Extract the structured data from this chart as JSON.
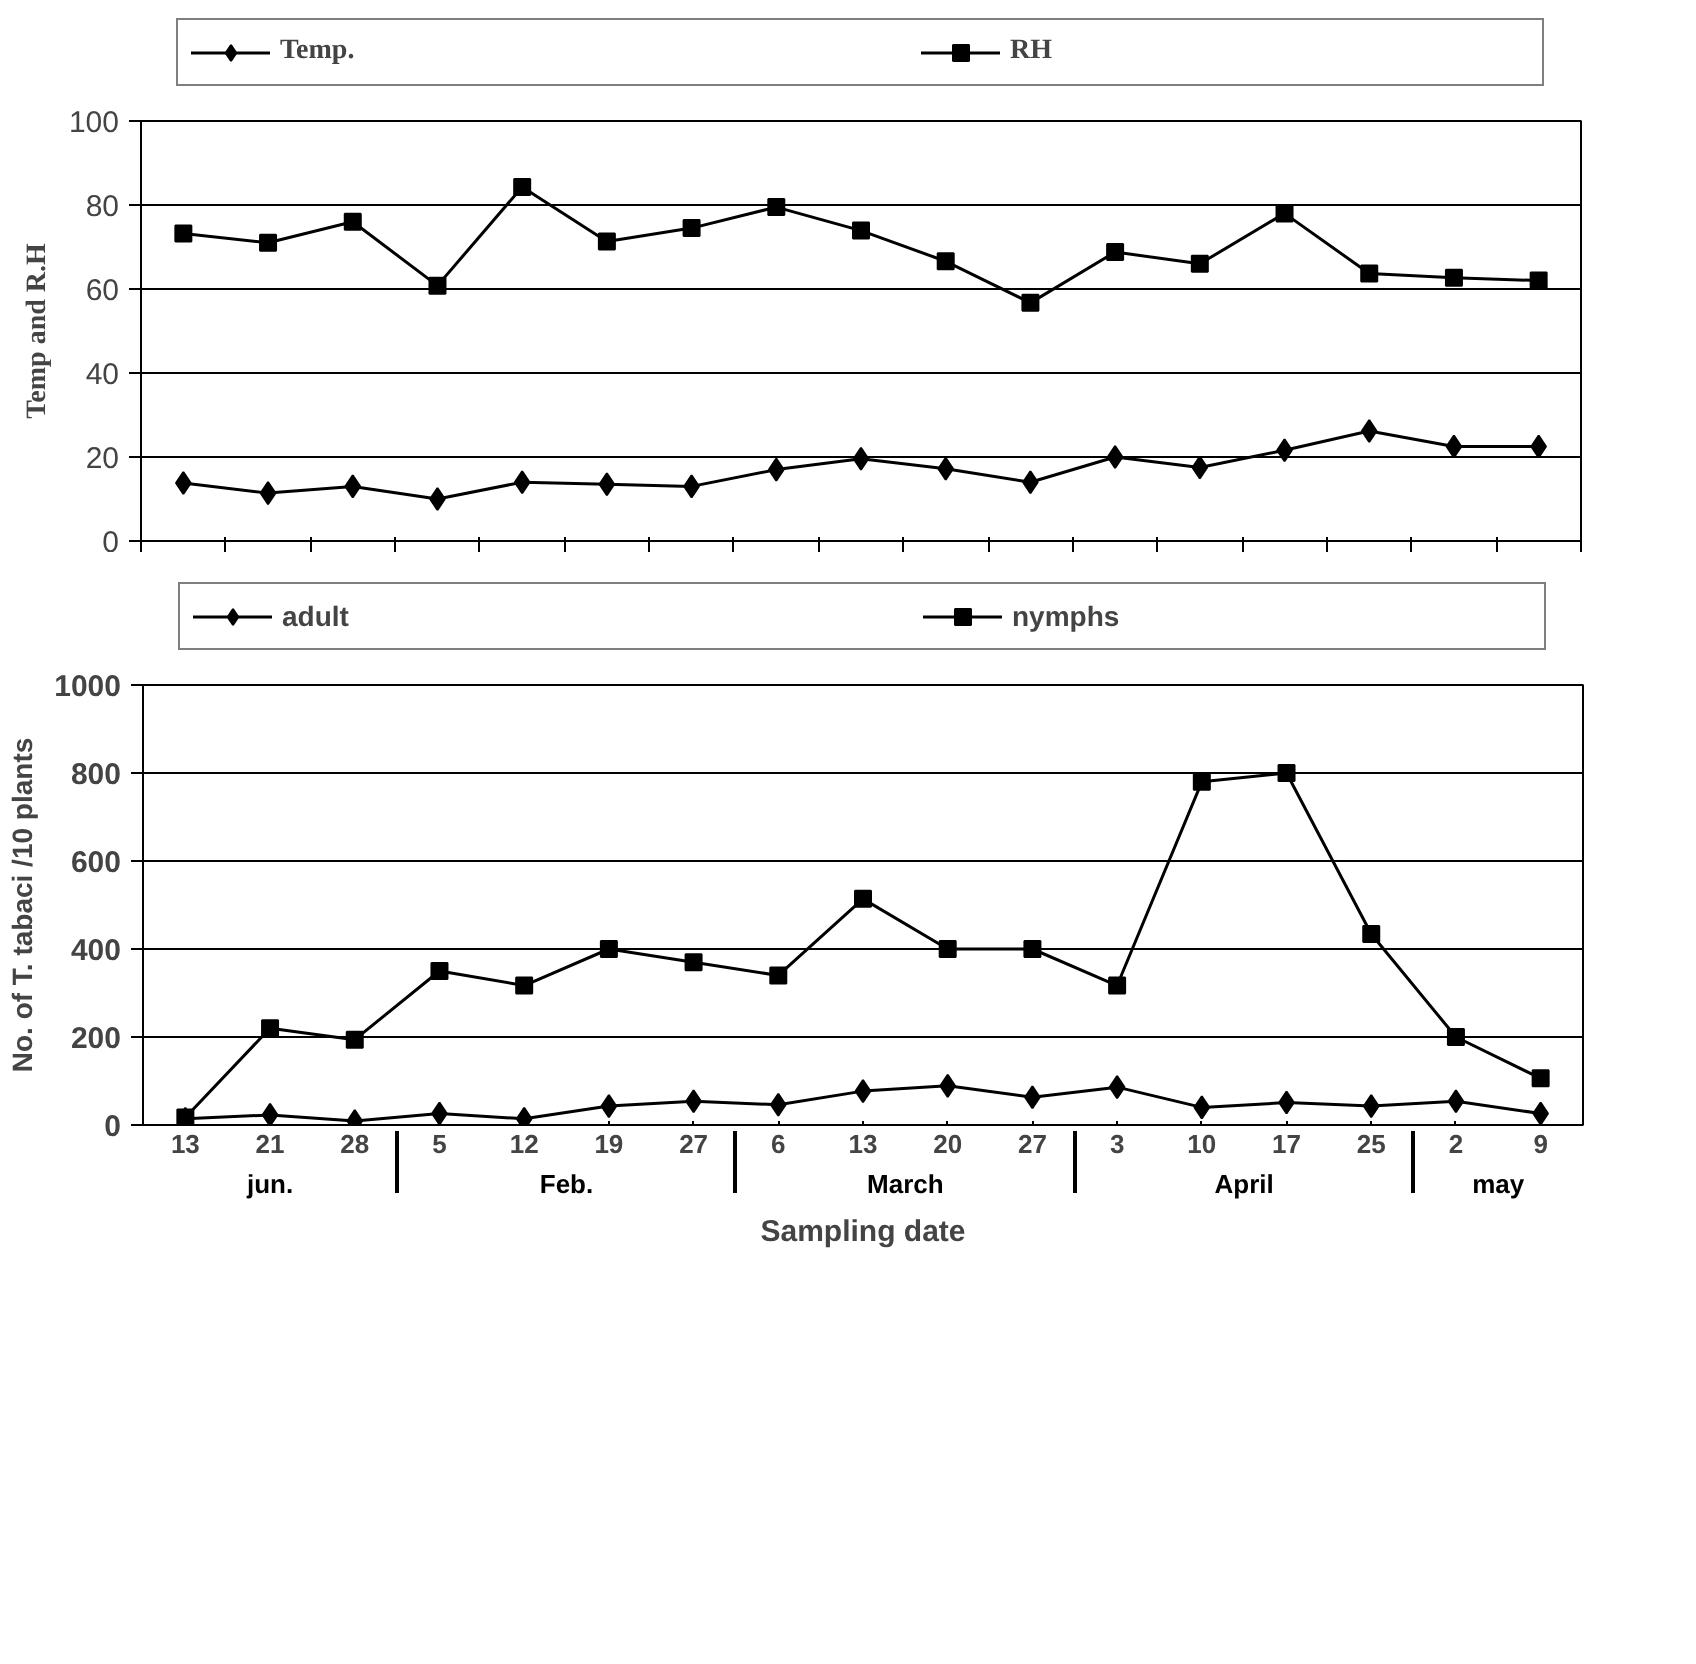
{
  "chart_data": [
    {
      "type": "line",
      "ylabel": "Temp and R.H",
      "categories": [
        null,
        null,
        null,
        null,
        null,
        null,
        null,
        null,
        null,
        null,
        null,
        null,
        null,
        null,
        null,
        null,
        null
      ],
      "series": [
        {
          "name": "Temp.",
          "color": "#000000",
          "marker": "diamond",
          "values": [
            13.8,
            11.4,
            13,
            10,
            14,
            13.5,
            13,
            17,
            19.6,
            17.2,
            14,
            20,
            17.5,
            21.6,
            26.2,
            22.5,
            22.5
          ]
        },
        {
          "name": "RH",
          "color": "#000000",
          "marker": "square",
          "values": [
            73.2,
            71,
            76,
            60.8,
            84.3,
            71.3,
            74.5,
            79.5,
            73.9,
            66.6,
            56.7,
            68.8,
            66,
            78,
            63.7,
            62.7,
            62
          ]
        }
      ],
      "ylim": [
        0,
        100
      ],
      "yticks": [
        0,
        20,
        40,
        60,
        80,
        100
      ],
      "grid": "y",
      "legend": "top",
      "tick_labels": "y"
    },
    {
      "type": "line",
      "ylabel": "No. of T. tabaci /10 plants",
      "xlabel": "Sampling date",
      "categories": [
        "13",
        "21",
        "28",
        "5",
        "12",
        "19",
        "27",
        "6",
        "13",
        "20",
        "27",
        "3",
        "10",
        "17",
        "25",
        "2",
        "9"
      ],
      "series": [
        {
          "name": "adult",
          "color": "#000000",
          "marker": "diamond",
          "values": [
            14,
            23,
            9,
            26,
            14,
            43,
            54,
            46,
            77,
            89,
            63,
            86,
            40,
            51,
            43,
            54,
            26
          ]
        },
        {
          "name": "nymphs",
          "color": "#000000",
          "marker": "square",
          "values": [
            17,
            220,
            194,
            350,
            317,
            400,
            370,
            340,
            514,
            400,
            400,
            317,
            780,
            800,
            434,
            200,
            106
          ]
        }
      ],
      "annotations": [
        "jun.",
        "Feb.",
        "March",
        "April",
        "may"
      ],
      "ylim": [
        0,
        1000
      ],
      "yticks": [
        0,
        200,
        400,
        600,
        800,
        1000
      ],
      "grid": "y",
      "legend": "top"
    }
  ]
}
